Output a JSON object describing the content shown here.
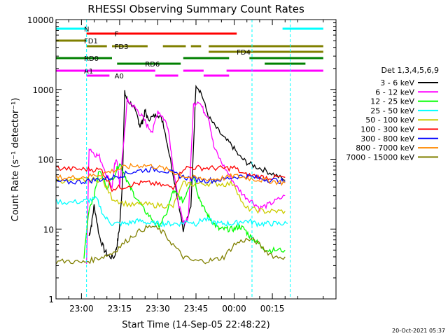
{
  "chart_data": {
    "type": "line",
    "title": "RHESSI Observing Summary Count Rates",
    "xlabel": "Start Time (14-Sep-05 22:48:22)",
    "ylabel": "Count Rate (s⁻¹ detector⁻¹)",
    "yscale": "log",
    "ylim": [
      1,
      10000
    ],
    "xlim_minutes": [
      -10,
      100
    ],
    "y_ticks": [
      {
        "value": 1,
        "label": "1"
      },
      {
        "value": 10,
        "label": "10"
      },
      {
        "value": 100,
        "label": "100"
      },
      {
        "value": 1000,
        "label": "1000"
      },
      {
        "value": 10000,
        "label": "10000"
      }
    ],
    "x_ticks": [
      {
        "minutes": 0,
        "label": "23:00"
      },
      {
        "minutes": 15,
        "label": "23:15"
      },
      {
        "minutes": 30,
        "label": "23:30"
      },
      {
        "minutes": 45,
        "label": "23:45"
      },
      {
        "minutes": 60,
        "label": "00:00"
      },
      {
        "minutes": 75,
        "label": "00:15"
      }
    ],
    "legend_title": "Det 1,3,4,5,6,9",
    "legend_position": "right",
    "series": [
      {
        "name": "3 - 6 keV",
        "color": "#000000",
        "x": [
          3,
          4,
          5,
          7,
          9,
          11,
          13,
          14,
          15,
          16,
          17,
          18,
          20,
          22,
          23,
          24,
          25,
          26,
          28,
          30,
          32,
          34,
          37,
          40,
          43,
          45,
          47,
          50,
          53,
          56,
          59,
          62,
          65,
          68,
          72,
          76,
          80
        ],
        "y": [
          8,
          12,
          22,
          8,
          5,
          4,
          4,
          6,
          11,
          40,
          900,
          700,
          600,
          400,
          300,
          350,
          500,
          380,
          400,
          450,
          350,
          150,
          40,
          10,
          20,
          1200,
          900,
          400,
          280,
          200,
          160,
          110,
          90,
          80,
          70,
          60,
          50
        ]
      },
      {
        "name": "6 - 12 keV",
        "color": "#ff00ff",
        "x": [
          2,
          3,
          5,
          7,
          10,
          12,
          13,
          14,
          15,
          16,
          18,
          20,
          22,
          24,
          26,
          28,
          30,
          32,
          34,
          36,
          38,
          40,
          42,
          44,
          46,
          48,
          50,
          52,
          55,
          58,
          61,
          64,
          67,
          70,
          73,
          76,
          80
        ],
        "y": [
          3,
          150,
          120,
          110,
          60,
          40,
          80,
          100,
          40,
          100,
          700,
          600,
          500,
          400,
          300,
          250,
          500,
          400,
          300,
          80,
          25,
          12,
          15,
          600,
          700,
          500,
          400,
          150,
          90,
          60,
          40,
          30,
          25,
          20,
          22,
          25,
          30
        ]
      },
      {
        "name": "12 - 25 keV",
        "color": "#00ff00",
        "x": [
          1,
          3,
          5,
          7,
          10,
          13,
          15,
          17,
          19,
          21,
          24,
          27,
          30,
          33,
          36,
          38,
          40,
          42,
          44,
          46,
          48,
          50,
          52,
          54,
          56,
          58,
          60,
          62,
          64,
          66,
          68,
          70,
          73,
          76,
          80
        ],
        "y": [
          4,
          20,
          30,
          70,
          40,
          60,
          90,
          60,
          40,
          30,
          20,
          15,
          11,
          15,
          35,
          30,
          25,
          40,
          60,
          30,
          20,
          15,
          12,
          10,
          10,
          10,
          10,
          11,
          10,
          8,
          7,
          6,
          5,
          5,
          5
        ]
      },
      {
        "name": "25 - 50 keV",
        "color": "#00ffff",
        "x": [
          -10,
          -5,
          0,
          3,
          6,
          9,
          12,
          15,
          18,
          21,
          24,
          27,
          30,
          33,
          36,
          39,
          42,
          45,
          48,
          51,
          54,
          57,
          60,
          63,
          66,
          69,
          72,
          75,
          78,
          81
        ],
        "y": [
          25,
          24,
          25,
          26,
          27,
          15,
          12,
          12,
          12,
          13,
          13,
          12,
          12,
          12,
          12,
          12,
          13,
          12,
          14,
          13,
          12,
          12,
          12,
          13,
          13,
          12,
          12,
          12,
          12,
          12
        ]
      },
      {
        "name": "50 - 100 keV",
        "color": "#cccc00",
        "x": [
          -10,
          -5,
          0,
          4,
          8,
          12,
          16,
          20,
          24,
          28,
          32,
          36,
          40,
          44,
          48,
          52,
          56,
          60,
          64,
          68,
          72,
          76,
          80
        ],
        "y": [
          50,
          49,
          50,
          51,
          52,
          28,
          24,
          22,
          23,
          22,
          22,
          21,
          45,
          44,
          45,
          45,
          44,
          45,
          20,
          19,
          18,
          18,
          18
        ]
      },
      {
        "name": "100 - 300 keV",
        "color": "#ff0000",
        "x": [
          -10,
          -5,
          0,
          4,
          8,
          12,
          16,
          20,
          24,
          28,
          32,
          36,
          40,
          44,
          48,
          52,
          56,
          60,
          64,
          68,
          72,
          76,
          80
        ],
        "y": [
          75,
          73,
          72,
          72,
          70,
          38,
          40,
          44,
          46,
          45,
          42,
          40,
          75,
          76,
          75,
          75,
          74,
          76,
          60,
          58,
          55,
          55,
          55
        ]
      },
      {
        "name": "300 - 800 keV",
        "color": "#0000ff",
        "x": [
          -10,
          -5,
          0,
          4,
          8,
          12,
          16,
          20,
          24,
          28,
          32,
          36,
          40,
          44,
          48,
          52,
          56,
          60,
          64,
          68,
          72,
          76,
          80
        ],
        "y": [
          48,
          47,
          48,
          50,
          52,
          55,
          60,
          66,
          70,
          72,
          70,
          63,
          56,
          52,
          50,
          50,
          52,
          56,
          58,
          55,
          52,
          50,
          48
        ]
      },
      {
        "name": "800 - 7000 keV",
        "color": "#ff8800",
        "x": [
          -10,
          -5,
          0,
          4,
          8,
          12,
          16,
          20,
          24,
          28,
          32,
          36,
          40,
          44,
          48,
          52,
          56,
          60,
          64,
          68,
          72,
          76,
          80
        ],
        "y": [
          55,
          54,
          56,
          58,
          62,
          68,
          75,
          80,
          82,
          80,
          74,
          66,
          58,
          54,
          52,
          52,
          54,
          58,
          55,
          52,
          50,
          48,
          46
        ]
      },
      {
        "name": "7000 - 15000 keV",
        "color": "#808000",
        "x": [
          -10,
          -5,
          0,
          4,
          8,
          12,
          16,
          20,
          24,
          28,
          32,
          36,
          40,
          44,
          48,
          52,
          56,
          60,
          64,
          68,
          72,
          76,
          80
        ],
        "y": [
          3.4,
          3.5,
          3.3,
          3.6,
          4,
          4.5,
          6,
          8,
          10,
          11,
          9,
          6,
          4,
          3.5,
          3.5,
          3.6,
          4,
          6,
          7,
          7,
          5,
          4,
          4
        ]
      }
    ],
    "flags": [
      {
        "label": "N",
        "color": "#00ffff",
        "segments": [
          [
            -10,
            2
          ],
          [
            79,
            95
          ]
        ]
      },
      {
        "label": "F",
        "color": "#ff0000",
        "segments": [
          [
            2,
            61
          ]
        ]
      },
      {
        "label": "FD1",
        "color": "#808000",
        "segments": [
          [
            -10,
            2
          ]
        ]
      },
      {
        "label": "FD3",
        "color": "#808000",
        "segments": [
          [
            2,
            10
          ],
          [
            12,
            26
          ],
          [
            32,
            41
          ],
          [
            43,
            47
          ],
          [
            50,
            95
          ]
        ]
      },
      {
        "label": "FD4",
        "color": "#808000",
        "segments": [
          [
            50,
            95
          ]
        ]
      },
      {
        "label": "RD0",
        "color": "#008000",
        "segments": [
          [
            -10,
            12
          ],
          [
            40,
            58
          ],
          [
            66,
            95
          ]
        ]
      },
      {
        "label": "RD6",
        "color": "#008000",
        "segments": [
          [
            14,
            39
          ],
          [
            72,
            88
          ]
        ]
      },
      {
        "label": "A1",
        "color": "#ff00ff",
        "segments": [
          [
            -10,
            2
          ],
          [
            2,
            29
          ],
          [
            40,
            48
          ],
          [
            57,
            95
          ]
        ]
      },
      {
        "label": "A0",
        "color": "#ff00ff",
        "segments": [
          [
            2,
            11
          ],
          [
            29,
            38
          ],
          [
            48,
            58
          ]
        ]
      }
    ],
    "vertical_markers": [
      {
        "minutes": -10,
        "color": "#00ffff"
      },
      {
        "minutes": 2,
        "color": "#00ffff"
      },
      {
        "minutes": 67,
        "color": "#00ffff"
      },
      {
        "minutes": 82,
        "color": "#00ffff"
      }
    ],
    "footer_stamp": "20-Oct-2021 05:37"
  }
}
